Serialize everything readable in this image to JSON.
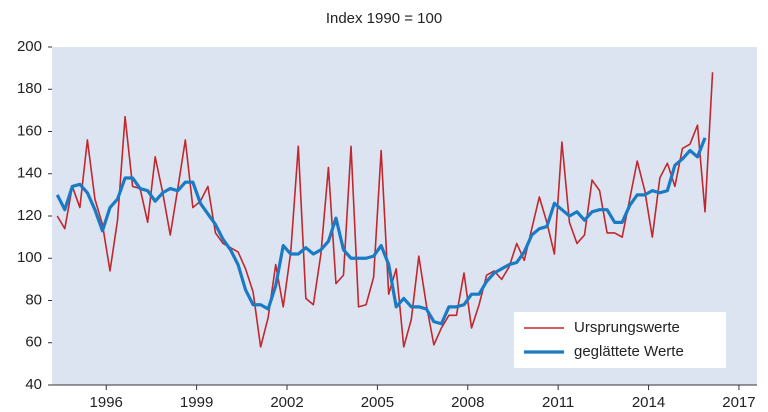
{
  "chart_data": {
    "type": "line",
    "title": "Index 1990 = 100",
    "x": [
      1994.375,
      1994.625,
      1994.875,
      1995.125,
      1995.375,
      1995.625,
      1995.875,
      1996.125,
      1996.375,
      1996.625,
      1996.875,
      1997.125,
      1997.375,
      1997.625,
      1997.875,
      1998.125,
      1998.375,
      1998.625,
      1998.875,
      1999.125,
      1999.375,
      1999.625,
      1999.875,
      2000.125,
      2000.375,
      2000.625,
      2000.875,
      2001.125,
      2001.375,
      2001.625,
      2001.875,
      2002.125,
      2002.375,
      2002.625,
      2002.875,
      2003.125,
      2003.375,
      2003.625,
      2003.875,
      2004.125,
      2004.375,
      2004.625,
      2004.875,
      2005.125,
      2005.375,
      2005.625,
      2005.875,
      2006.125,
      2006.375,
      2006.625,
      2006.875,
      2007.125,
      2007.375,
      2007.625,
      2007.875,
      2008.125,
      2008.375,
      2008.625,
      2008.875,
      2009.125,
      2009.375,
      2009.625,
      2009.875,
      2010.125,
      2010.375,
      2010.625,
      2010.875,
      2011.125,
      2011.375,
      2011.625,
      2011.875,
      2012.125,
      2012.375,
      2012.625,
      2012.875,
      2013.125,
      2013.375,
      2013.625,
      2013.875,
      2014.125,
      2014.375,
      2014.625,
      2014.875,
      2015.125,
      2015.375,
      2015.625,
      2015.875,
      2016.125
    ],
    "series": [
      {
        "name": "Ursprungswerte",
        "color": "#c0282d",
        "width": 1.6,
        "values": [
          120,
          114,
          134,
          124,
          156,
          128,
          116,
          94,
          118,
          167,
          134,
          133,
          117,
          148,
          131,
          111,
          133,
          156,
          124,
          127,
          134,
          112,
          107,
          105,
          103,
          95,
          84,
          58,
          72,
          97,
          77,
          103,
          153,
          81,
          78,
          102,
          143,
          88,
          92,
          153,
          77,
          78,
          91,
          151,
          83,
          95,
          58,
          71,
          101,
          78,
          59,
          67,
          73,
          73,
          93,
          67,
          78,
          92,
          94,
          90,
          96,
          107,
          99,
          114,
          129,
          117,
          102,
          155,
          117,
          107,
          111,
          137,
          132,
          112,
          112,
          110,
          128,
          146,
          132,
          110,
          138,
          145,
          134,
          152,
          154,
          163,
          122,
          188
        ]
      },
      {
        "name": "geglättete Werte",
        "color": "#1a7bc4",
        "width": 3.2,
        "values": [
          130,
          123,
          134,
          135,
          131,
          123,
          113,
          124,
          128,
          138,
          138,
          133,
          132,
          127,
          131,
          133,
          132,
          136,
          136,
          126,
          121,
          116,
          109,
          104,
          97,
          85,
          78,
          78,
          76,
          87,
          106,
          102,
          102,
          105,
          102,
          104,
          108,
          119,
          104,
          100,
          100,
          100,
          101,
          106,
          97,
          77,
          81,
          77,
          77,
          76,
          70,
          69,
          77,
          77,
          78,
          83,
          83,
          89,
          93,
          95,
          97,
          98,
          103,
          111,
          114,
          115,
          126,
          123,
          120,
          122,
          118,
          122,
          123,
          123,
          117,
          117,
          125,
          130,
          130,
          132,
          131,
          132,
          144,
          147,
          151,
          148,
          157,
          null
        ]
      }
    ],
    "xlim": [
      1994.2,
      2017.6
    ],
    "xticks": [
      1996,
      1999,
      2002,
      2005,
      2008,
      2011,
      2014,
      2017
    ],
    "ylim": [
      40,
      200
    ],
    "yticks": [
      40,
      60,
      80,
      100,
      120,
      140,
      160,
      180,
      200
    ],
    "background": "#dce4f2",
    "legend": "lower right"
  }
}
